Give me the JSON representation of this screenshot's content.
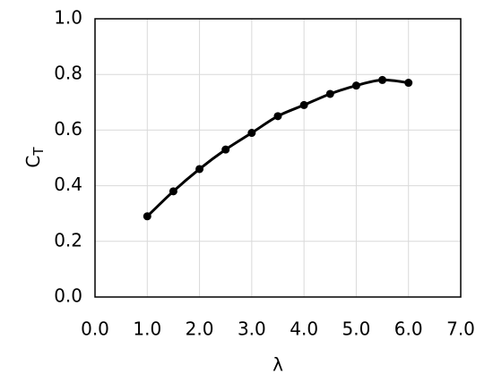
{
  "chart_data": {
    "type": "line",
    "x_label": "λ",
    "y_label": "C",
    "y_label_subscript": "T",
    "x": [
      1.0,
      1.5,
      2.0,
      2.5,
      3.0,
      3.5,
      4.0,
      4.5,
      5.0,
      5.5,
      6.0
    ],
    "series": [
      {
        "color": "#000000",
        "values": [
          0.29,
          0.38,
          0.46,
          0.53,
          0.59,
          0.65,
          0.69,
          0.73,
          0.76,
          0.78,
          0.77
        ]
      }
    ],
    "xlim": [
      0,
      7
    ],
    "xticks": [
      {
        "value": 0,
        "label": "0.0"
      },
      {
        "value": 1,
        "label": "1.0"
      },
      {
        "value": 2,
        "label": "2.0"
      },
      {
        "value": 3,
        "label": "3.0"
      },
      {
        "value": 4,
        "label": "4.0"
      },
      {
        "value": 5,
        "label": "5.0"
      },
      {
        "value": 6,
        "label": "6.0"
      },
      {
        "value": 7,
        "label": "7.0"
      }
    ],
    "ylim": [
      0,
      1
    ],
    "yticks": [
      {
        "value": 0,
        "label": "0.0"
      },
      0.2,
      0.4,
      0.6,
      0.8,
      {
        "value": 1,
        "label": "1.0"
      }
    ],
    "grid": true,
    "smooth": true,
    "markers": true
  }
}
